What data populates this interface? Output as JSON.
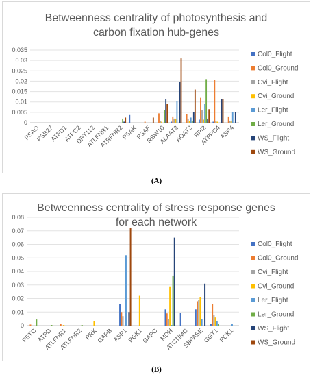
{
  "chart_data": [
    {
      "type": "bar",
      "title_line1": "Betweenness centrality of photosynthesis and",
      "title_line2": "carbon fixation hub-genes",
      "caption": "(A)",
      "ylim": [
        0,
        0.035
      ],
      "yticks": [
        "0",
        "0.005",
        "0.01",
        "0.015",
        "0.02",
        "0.025",
        "0.03",
        "0.035"
      ],
      "grid": true,
      "legend_position": "right",
      "categories": [
        "PSAO",
        "PSB27",
        "ATFD1",
        "ATPC2",
        "DRT112",
        "ATLFNR1",
        "ATRFNR2",
        "PSAK",
        "PSAF",
        "RSW10",
        "ALAAT2",
        "AOAT2",
        "RPI2",
        "ATPPC4",
        "ASP4"
      ],
      "series": [
        {
          "name": "Col0_Flight",
          "color": "#4472C4",
          "values": [
            0,
            0,
            0,
            0,
            0,
            0,
            0,
            0.0037,
            0,
            0,
            0.0005,
            0,
            0.0015,
            0.0005,
            0
          ]
        },
        {
          "name": "Col0_Ground",
          "color": "#ED7D31",
          "values": [
            0,
            0,
            0,
            0,
            0,
            0,
            0,
            0,
            0.0005,
            0.0045,
            0.003,
            0.004,
            0.012,
            0.0205,
            0.003
          ]
        },
        {
          "name": "Cvi_Flight",
          "color": "#A5A5A5",
          "values": [
            0,
            0,
            0,
            0,
            0,
            0,
            0,
            0,
            0,
            0.001,
            0.002,
            0.002,
            0.006,
            0.001,
            0.001
          ]
        },
        {
          "name": "Cvi_Ground",
          "color": "#FFC000",
          "values": [
            0,
            0,
            0,
            0,
            0,
            0,
            0,
            0,
            0,
            0.0005,
            0.002,
            0.001,
            0.0015,
            0.0005,
            0.001
          ]
        },
        {
          "name": "Ler_Flight",
          "color": "#5B9BD5",
          "values": [
            0,
            0,
            0,
            0,
            0,
            0,
            0,
            0,
            0,
            0,
            0.0105,
            0.0025,
            0.009,
            0,
            0.005
          ]
        },
        {
          "name": "Ler_Ground",
          "color": "#70AD47",
          "values": [
            0,
            0,
            0,
            0,
            0,
            0,
            0.002,
            0,
            0,
            0.006,
            0,
            0.001,
            0.021,
            0,
            0
          ]
        },
        {
          "name": "WS_Flight",
          "color": "#264478",
          "values": [
            0,
            0,
            0,
            0,
            0,
            0,
            0.0005,
            0,
            0,
            0.0115,
            0.0195,
            0.005,
            0.002,
            0.0115,
            0.005
          ]
        },
        {
          "name": "WS_Ground",
          "color": "#9E480E",
          "values": [
            0,
            0,
            0,
            0,
            0,
            0,
            0.0025,
            0,
            0.0025,
            0.009,
            0.031,
            0.016,
            0.0065,
            0.0115,
            0
          ]
        }
      ]
    },
    {
      "type": "bar",
      "title_line1": "Betweenness centrality of stress response genes",
      "title_line2": "for each network",
      "caption": "(B)",
      "ylim": [
        0,
        0.08
      ],
      "yticks": [
        "0",
        "0.01",
        "0.02",
        "0.03",
        "0.04",
        "0.05",
        "0.06",
        "0.07",
        "0.08"
      ],
      "grid": true,
      "legend_position": "right",
      "categories": [
        "PETC",
        "ATPD",
        "ATLFNR1",
        "ATLFNR2",
        "PRK",
        "GAPB",
        "ASP1",
        "PGK1",
        "GAPC",
        "MDH",
        "ATCTIMC",
        "SBPASE",
        "GGT1",
        "PCK1"
      ],
      "series": [
        {
          "name": "Col0_Flight",
          "color": "#4472C4",
          "values": [
            0,
            0,
            0,
            0,
            0,
            0,
            0.016,
            0,
            0,
            0.012,
            0.0095,
            0.012,
            0.0015,
            0
          ]
        },
        {
          "name": "Col0_Ground",
          "color": "#ED7D31",
          "values": [
            0.0008,
            0,
            0.0012,
            0,
            0,
            0,
            0.01,
            0,
            0,
            0.009,
            0,
            0.018,
            0.016,
            0
          ]
        },
        {
          "name": "Cvi_Flight",
          "color": "#A5A5A5",
          "values": [
            0,
            0,
            0,
            0,
            0,
            0,
            0.007,
            0,
            0,
            0.005,
            0,
            0.019,
            0.008,
            0
          ]
        },
        {
          "name": "Cvi_Ground",
          "color": "#FFC000",
          "values": [
            0,
            0,
            0.0005,
            0,
            0.0035,
            0,
            0,
            0.022,
            0,
            0.029,
            0,
            0.021,
            0.006,
            0
          ]
        },
        {
          "name": "Ler_Flight",
          "color": "#5B9BD5",
          "values": [
            0,
            0,
            0,
            0,
            0,
            0,
            0.052,
            0,
            0,
            0.0005,
            0,
            0.005,
            0.0035,
            0.001
          ]
        },
        {
          "name": "Ler_Ground",
          "color": "#70AD47",
          "values": [
            0.0045,
            0.0005,
            0,
            0.0005,
            0,
            0,
            0,
            0,
            0,
            0.037,
            0,
            0,
            0.001,
            0
          ]
        },
        {
          "name": "WS_Flight",
          "color": "#264478",
          "values": [
            0,
            0,
            0,
            0,
            0,
            0,
            0.01,
            0,
            0,
            0.065,
            0,
            0.031,
            0,
            0
          ]
        },
        {
          "name": "WS_Ground",
          "color": "#9E480E",
          "values": [
            0,
            0,
            0,
            0,
            0,
            0,
            0.072,
            0,
            0,
            0,
            0,
            0,
            0,
            0
          ]
        }
      ]
    }
  ]
}
